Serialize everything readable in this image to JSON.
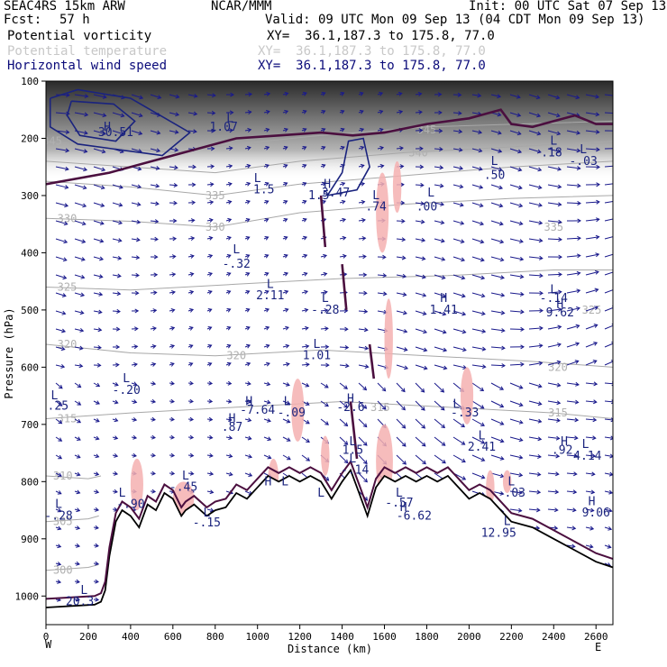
{
  "header": {
    "model": "SEAC4RS 15km ARW",
    "fcst_label": "Fcst:",
    "fcst_value": "57 h",
    "center": "NCAR/MMM",
    "init": "Init: 00 UTC Sat 07 Sep 13",
    "valid": "Valid: 09 UTC Mon 09 Sep 13 (04 CDT Mon 09 Sep 13)",
    "fields": [
      {
        "name": "Potential vorticity",
        "xy": "XY=  36.1,187.3 to 175.8, 77.0",
        "color": "#000000"
      },
      {
        "name": "Potential temperature",
        "xy": "XY=  36.1,187.3 to 175.8, 77.0",
        "color": "#c8c8c8"
      },
      {
        "name": "Horizontal wind speed",
        "xy": "XY=  36.1,187.3 to 175.8, 77.0",
        "color": "#0b0b7a"
      }
    ]
  },
  "chart_data": {
    "type": "cross-section",
    "xlabel": "Distance (km)",
    "ylabel": "Pressure (hPa)",
    "xlim": [
      0,
      2680
    ],
    "ylim": [
      1050,
      100
    ],
    "x_ticks": [
      "0",
      "200",
      "400",
      "600",
      "800",
      "1000",
      "1200",
      "1400",
      "1600",
      "1800",
      "2000",
      "2200",
      "2400",
      "2600"
    ],
    "y_ticks": [
      "100",
      "200",
      "300",
      "400",
      "500",
      "600",
      "700",
      "800",
      "900",
      "1000"
    ],
    "x_end_labels": {
      "left": "W",
      "right": "E"
    },
    "terrain": [
      [
        0,
        1020
      ],
      [
        230,
        1015
      ],
      [
        260,
        1010
      ],
      [
        280,
        990
      ],
      [
        300,
        930
      ],
      [
        330,
        870
      ],
      [
        360,
        850
      ],
      [
        400,
        860
      ],
      [
        440,
        880
      ],
      [
        480,
        840
      ],
      [
        520,
        850
      ],
      [
        560,
        820
      ],
      [
        600,
        830
      ],
      [
        640,
        860
      ],
      [
        660,
        850
      ],
      [
        700,
        840
      ],
      [
        760,
        860
      ],
      [
        800,
        850
      ],
      [
        850,
        845
      ],
      [
        900,
        820
      ],
      [
        950,
        830
      ],
      [
        1000,
        810
      ],
      [
        1050,
        790
      ],
      [
        1100,
        800
      ],
      [
        1150,
        790
      ],
      [
        1200,
        800
      ],
      [
        1250,
        790
      ],
      [
        1300,
        800
      ],
      [
        1350,
        830
      ],
      [
        1400,
        800
      ],
      [
        1440,
        780
      ],
      [
        1480,
        820
      ],
      [
        1520,
        860
      ],
      [
        1560,
        810
      ],
      [
        1600,
        790
      ],
      [
        1650,
        800
      ],
      [
        1700,
        790
      ],
      [
        1750,
        800
      ],
      [
        1800,
        790
      ],
      [
        1850,
        800
      ],
      [
        1900,
        790
      ],
      [
        1950,
        810
      ],
      [
        2000,
        830
      ],
      [
        2050,
        820
      ],
      [
        2100,
        830
      ],
      [
        2200,
        870
      ],
      [
        2300,
        880
      ],
      [
        2400,
        900
      ],
      [
        2500,
        920
      ],
      [
        2600,
        940
      ],
      [
        2680,
        950
      ]
    ],
    "isentropes": [
      {
        "label": "345",
        "points": [
          [
            0,
            205
          ],
          [
            300,
            215
          ],
          [
            600,
            225
          ],
          [
            900,
            210
          ],
          [
            1300,
            195
          ],
          [
            1800,
            180
          ],
          [
            2680,
            170
          ]
        ]
      },
      {
        "label": "340",
        "points": [
          [
            0,
            240
          ],
          [
            400,
            250
          ],
          [
            800,
            260
          ],
          [
            1200,
            240
          ],
          [
            1700,
            225
          ],
          [
            2200,
            215
          ],
          [
            2680,
            205
          ]
        ]
      },
      {
        "label": "335",
        "points": [
          [
            0,
            275
          ],
          [
            400,
            285
          ],
          [
            800,
            300
          ],
          [
            1200,
            280
          ],
          [
            1700,
            265
          ],
          [
            2200,
            250
          ],
          [
            2680,
            240
          ]
        ]
      },
      {
        "label": "330",
        "points": [
          [
            0,
            340
          ],
          [
            400,
            345
          ],
          [
            800,
            355
          ],
          [
            1200,
            330
          ],
          [
            1700,
            315
          ],
          [
            2200,
            305
          ],
          [
            2680,
            300
          ]
        ]
      },
      {
        "label": "325",
        "points": [
          [
            0,
            460
          ],
          [
            400,
            465
          ],
          [
            900,
            455
          ],
          [
            1400,
            445
          ],
          [
            1900,
            440
          ],
          [
            2400,
            430
          ],
          [
            2680,
            430
          ]
        ]
      },
      {
        "label": "320",
        "points": [
          [
            0,
            560
          ],
          [
            400,
            575
          ],
          [
            800,
            580
          ],
          [
            1300,
            570
          ],
          [
            1800,
            580
          ],
          [
            2300,
            590
          ],
          [
            2680,
            600
          ]
        ]
      },
      {
        "label": "315",
        "points": [
          [
            0,
            690
          ],
          [
            400,
            680
          ],
          [
            900,
            670
          ],
          [
            1400,
            660
          ],
          [
            1900,
            670
          ],
          [
            2400,
            680
          ],
          [
            2680,
            690
          ]
        ]
      },
      {
        "label": "310",
        "points": [
          [
            0,
            790
          ],
          [
            200,
            795
          ],
          [
            260,
            790
          ]
        ]
      },
      {
        "label": "305",
        "points": [
          [
            0,
            870
          ],
          [
            200,
            865
          ],
          [
            250,
            860
          ]
        ]
      },
      {
        "label": "300",
        "points": [
          [
            0,
            955
          ],
          [
            200,
            950
          ],
          [
            250,
            945
          ]
        ]
      }
    ],
    "isentrope_labels": [
      {
        "text": "345",
        "x": 30,
        "p": 205
      },
      {
        "text": "340",
        "x": 1760,
        "p": 225
      },
      {
        "text": "335",
        "x": 800,
        "p": 300
      },
      {
        "text": "330",
        "x": 100,
        "p": 340
      },
      {
        "text": "330",
        "x": 800,
        "p": 355
      },
      {
        "text": "335",
        "x": 2400,
        "p": 355
      },
      {
        "text": "325",
        "x": 100,
        "p": 460
      },
      {
        "text": "325",
        "x": 2580,
        "p": 500
      },
      {
        "text": "320",
        "x": 100,
        "p": 560
      },
      {
        "text": "320",
        "x": 900,
        "p": 580
      },
      {
        "text": "320",
        "x": 2420,
        "p": 600
      },
      {
        "text": "315",
        "x": 100,
        "p": 690
      },
      {
        "text": "315",
        "x": 1580,
        "p": 670
      },
      {
        "text": "315",
        "x": 2420,
        "p": 680
      },
      {
        "text": "310",
        "x": 80,
        "p": 790
      },
      {
        "text": "305",
        "x": 80,
        "p": 870
      },
      {
        "text": "300",
        "x": 80,
        "p": 955
      },
      {
        "text": "345",
        "x": 1800,
        "p": 185
      }
    ],
    "pv_contour": [
      [
        0,
        280
      ],
      [
        300,
        260
      ],
      [
        600,
        230
      ],
      [
        900,
        200
      ],
      [
        1100,
        195
      ],
      [
        1300,
        190
      ],
      [
        1450,
        195
      ],
      [
        1600,
        190
      ],
      [
        1800,
        175
      ],
      [
        2000,
        165
      ],
      [
        2150,
        150
      ],
      [
        2200,
        175
      ],
      [
        2300,
        180
      ],
      [
        2400,
        170
      ],
      [
        2500,
        160
      ],
      [
        2600,
        175
      ],
      [
        2680,
        175
      ]
    ],
    "wind_contours": [
      {
        "points": [
          [
            20,
            130
          ],
          [
            150,
            115
          ],
          [
            400,
            130
          ],
          [
            680,
            190
          ],
          [
            550,
            230
          ],
          [
            350,
            220
          ],
          [
            150,
            210
          ],
          [
            20,
            180
          ],
          [
            20,
            130
          ]
        ]
      },
      {
        "points": [
          [
            120,
            135
          ],
          [
            320,
            140
          ],
          [
            420,
            170
          ],
          [
            330,
            205
          ],
          [
            160,
            195
          ],
          [
            100,
            160
          ],
          [
            120,
            135
          ]
        ]
      },
      {
        "points": [
          [
            1330,
            300
          ],
          [
            1470,
            290
          ],
          [
            1530,
            250
          ],
          [
            1500,
            200
          ],
          [
            1430,
            205
          ],
          [
            1400,
            260
          ],
          [
            1330,
            300
          ]
        ]
      }
    ],
    "labels": [
      {
        "text": "H",
        "x": 290,
        "p": 180
      },
      {
        "text": "30.51",
        "x": 330,
        "p": 190
      },
      {
        "text": "L",
        "x": 870,
        "p": 165
      },
      {
        "text": "1.07",
        "x": 840,
        "p": 180
      },
      {
        "text": "L",
        "x": 1000,
        "p": 270
      },
      {
        "text": "1.5",
        "x": 1030,
        "p": 290
      },
      {
        "text": "H",
        "x": 1330,
        "p": 280
      },
      {
        "text": "3.47",
        "x": 1370,
        "p": 295
      },
      {
        "text": "1.5",
        "x": 1290,
        "p": 300
      },
      {
        "text": "L",
        "x": 1560,
        "p": 300
      },
      {
        "text": ".74",
        "x": 1560,
        "p": 320
      },
      {
        "text": "L",
        "x": 1820,
        "p": 295
      },
      {
        "text": ".00",
        "x": 1800,
        "p": 320
      },
      {
        "text": "L",
        "x": 2120,
        "p": 240
      },
      {
        "text": ".50",
        "x": 2120,
        "p": 265
      },
      {
        "text": "L",
        "x": 2400,
        "p": 205
      },
      {
        "text": ".18",
        "x": 2390,
        "p": 225
      },
      {
        "text": "L",
        "x": 2540,
        "p": 220
      },
      {
        "text": "-.03",
        "x": 2540,
        "p": 240
      },
      {
        "text": "L",
        "x": 900,
        "p": 395
      },
      {
        "text": "-.32",
        "x": 900,
        "p": 420
      },
      {
        "text": "L",
        "x": 1060,
        "p": 455
      },
      {
        "text": "2.11",
        "x": 1060,
        "p": 475
      },
      {
        "text": "L",
        "x": 1320,
        "p": 480
      },
      {
        "text": "-.28",
        "x": 1320,
        "p": 500
      },
      {
        "text": "H",
        "x": 1880,
        "p": 480
      },
      {
        "text": "1.41",
        "x": 1880,
        "p": 500
      },
      {
        "text": "L",
        "x": 2400,
        "p": 465
      },
      {
        "text": "-.14",
        "x": 2400,
        "p": 480
      },
      {
        "text": "H",
        "x": 2430,
        "p": 490
      },
      {
        "text": "9.62",
        "x": 2430,
        "p": 505
      },
      {
        "text": "L",
        "x": 1280,
        "p": 560
      },
      {
        "text": "1.01",
        "x": 1280,
        "p": 580
      },
      {
        "text": "L",
        "x": 380,
        "p": 620
      },
      {
        "text": "-.20",
        "x": 380,
        "p": 640
      },
      {
        "text": "L",
        "x": 40,
        "p": 650
      },
      {
        "text": "-.25",
        "x": 40,
        "p": 668
      },
      {
        "text": "H",
        "x": 960,
        "p": 660
      },
      {
        "text": "-7.64",
        "x": 1000,
        "p": 675
      },
      {
        "text": "L",
        "x": 1140,
        "p": 660
      },
      {
        "text": "-.09",
        "x": 1160,
        "p": 680
      },
      {
        "text": "H",
        "x": 880,
        "p": 690
      },
      {
        "text": ".87",
        "x": 880,
        "p": 705
      },
      {
        "text": "H",
        "x": 1440,
        "p": 655
      },
      {
        "text": "-2.6",
        "x": 1440,
        "p": 670
      },
      {
        "text": "L",
        "x": 1940,
        "p": 665
      },
      {
        "text": "-.33",
        "x": 1980,
        "p": 680
      },
      {
        "text": "L",
        "x": 2060,
        "p": 720
      },
      {
        "text": "2.41",
        "x": 2060,
        "p": 740
      },
      {
        "text": "L",
        "x": 1450,
        "p": 730
      },
      {
        "text": "1.5",
        "x": 1450,
        "p": 745
      },
      {
        "text": "L",
        "x": 1450,
        "p": 760
      },
      {
        "text": "-.14",
        "x": 1460,
        "p": 780
      },
      {
        "text": "H",
        "x": 2450,
        "p": 730
      },
      {
        "text": ".92",
        "x": 2440,
        "p": 745
      },
      {
        "text": "L",
        "x": 2550,
        "p": 735
      },
      {
        "text": "4.14",
        "x": 2560,
        "p": 755
      },
      {
        "text": "L",
        "x": 660,
        "p": 790
      },
      {
        "text": "-.45",
        "x": 650,
        "p": 810
      },
      {
        "text": "H",
        "x": 1050,
        "p": 800
      },
      {
        "text": "L",
        "x": 1130,
        "p": 800
      },
      {
        "text": "L",
        "x": 1300,
        "p": 820
      },
      {
        "text": "L",
        "x": 2200,
        "p": 800
      },
      {
        "text": "-.03",
        "x": 2200,
        "p": 820
      },
      {
        "text": "L",
        "x": 1670,
        "p": 820
      },
      {
        "text": "-.57",
        "x": 1670,
        "p": 837
      },
      {
        "text": "H",
        "x": 1690,
        "p": 845
      },
      {
        "text": "-6.62",
        "x": 1740,
        "p": 860
      },
      {
        "text": "L",
        "x": 360,
        "p": 820
      },
      {
        "text": "-.90",
        "x": 400,
        "p": 840
      },
      {
        "text": "L",
        "x": 760,
        "p": 855
      },
      {
        "text": "-.15",
        "x": 760,
        "p": 872
      },
      {
        "text": "H",
        "x": 2580,
        "p": 835
      },
      {
        "text": "9.06",
        "x": 2600,
        "p": 855
      },
      {
        "text": "L",
        "x": 60,
        "p": 840
      },
      {
        "text": "-.28",
        "x": 60,
        "p": 860
      },
      {
        "text": "L",
        "x": 2180,
        "p": 870
      },
      {
        "text": "12.95",
        "x": 2140,
        "p": 890
      },
      {
        "text": "L",
        "x": 180,
        "p": 990
      },
      {
        "text": "20.3",
        "x": 160,
        "p": 1010
      }
    ]
  }
}
